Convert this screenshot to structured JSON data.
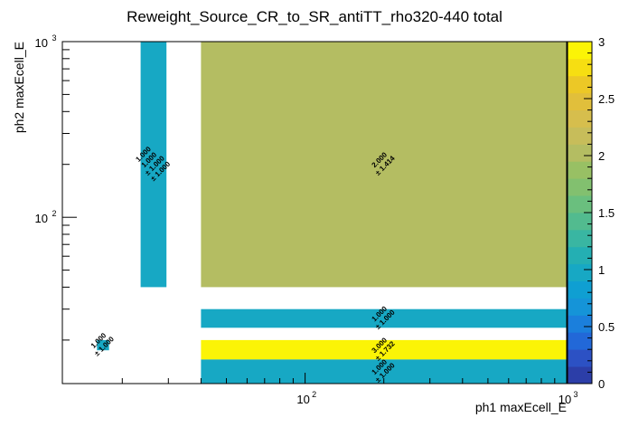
{
  "chart_data": {
    "type": "heatmap",
    "title": "Reweight_Source_CR_to_SR_antiTT_rho320-440 total",
    "xlabel": "ph1 maxEcell_E",
    "ylabel": "ph2 maxEcell_E",
    "x_scale": "log",
    "y_scale": "log",
    "xlim": [
      11.8,
      1000
    ],
    "ylim": [
      11.3,
      1000
    ],
    "x_major_ticks": [
      {
        "value": 100,
        "base": "10",
        "exp": "2"
      },
      {
        "value": 1000,
        "base": "10",
        "exp": "3"
      }
    ],
    "y_major_ticks": [
      {
        "value": 100,
        "base": "10",
        "exp": "2"
      },
      {
        "value": 1000,
        "base": "10",
        "exp": "3"
      }
    ],
    "z_range": [
      0,
      3
    ],
    "z_ticks": [
      "0",
      "0.5",
      "1",
      "1.5",
      "2",
      "2.5",
      "3"
    ],
    "cells": [
      {
        "x": [
          23.5,
          29.5
        ],
        "y": [
          40,
          1000
        ],
        "value": 1.0,
        "labels": [
          "1.000",
          "1.000",
          "± 1.000",
          "± 1.000"
        ]
      },
      {
        "x": [
          16.0,
          17.8
        ],
        "y": [
          17.5,
          20.0
        ],
        "value": 1.0,
        "labels": [
          "1.000",
          "± 1.000"
        ]
      },
      {
        "x": [
          40,
          1000
        ],
        "y": [
          40,
          1000
        ],
        "value": 2.0,
        "labels": [
          "2.000",
          "± 1.414"
        ]
      },
      {
        "x": [
          40,
          1000
        ],
        "y": [
          23.5,
          30
        ],
        "value": 1.0,
        "labels": [
          "1.000",
          "± 1.000"
        ]
      },
      {
        "x": [
          40,
          1000
        ],
        "y": [
          15.5,
          20.0
        ],
        "value": 3.0,
        "labels": [
          "3.000",
          "± 1.732"
        ]
      },
      {
        "x": [
          40,
          1000
        ],
        "y": [
          11.3,
          15.5
        ],
        "value": 1.0,
        "labels": [
          "1.000",
          "± 1.000"
        ]
      }
    ],
    "palette": [
      "#2c3ea8",
      "#2c51c4",
      "#2268d8",
      "#1b7fdc",
      "#1594d8",
      "#0f9fd2",
      "#17a8c4",
      "#24afb3",
      "#39b6a2",
      "#52bb8f",
      "#6abf7e",
      "#82c06f",
      "#98c064",
      "#b4bd62",
      "#c7bd5a",
      "#d6be4d",
      "#e1bf3b",
      "#ecc826",
      "#f6de12",
      "#fbf406"
    ],
    "colors": {
      "background": "#ffffff",
      "axis": "#000000"
    }
  }
}
